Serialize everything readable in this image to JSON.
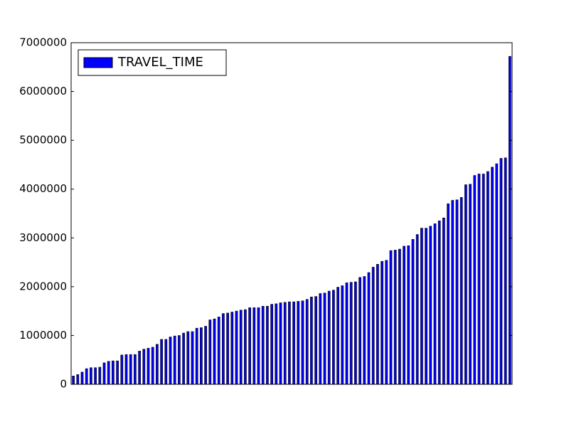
{
  "chart_data": {
    "type": "bar",
    "categories": [
      null,
      null,
      null,
      null,
      null,
      null,
      null,
      null,
      null,
      null,
      null,
      null,
      null,
      null,
      null,
      null,
      null,
      null,
      null,
      null,
      null,
      null,
      null,
      null,
      null,
      null,
      null,
      null,
      null,
      null,
      null,
      null,
      null,
      null,
      null,
      null,
      null,
      null,
      null,
      null,
      null,
      null,
      null,
      null,
      null,
      null,
      null,
      null,
      null,
      null,
      null,
      null,
      null,
      null,
      null,
      null,
      null,
      null,
      null,
      null,
      null,
      null,
      null,
      null,
      null,
      null,
      null,
      null,
      null,
      null,
      null,
      null,
      null,
      null,
      null,
      null,
      null,
      null,
      null,
      null,
      null,
      null,
      null,
      null,
      null,
      null,
      null,
      null,
      null,
      null,
      null,
      null,
      null,
      null,
      null,
      null,
      null,
      null,
      null,
      null
    ],
    "series": [
      {
        "name": "TRAVEL_TIME",
        "color": "#0000ff",
        "values": [
          170000,
          200000,
          250000,
          320000,
          340000,
          340000,
          350000,
          440000,
          470000,
          480000,
          480000,
          600000,
          610000,
          610000,
          610000,
          680000,
          720000,
          740000,
          760000,
          820000,
          920000,
          920000,
          970000,
          990000,
          1000000,
          1050000,
          1080000,
          1080000,
          1150000,
          1160000,
          1190000,
          1320000,
          1340000,
          1380000,
          1450000,
          1460000,
          1480000,
          1500000,
          1520000,
          1530000,
          1570000,
          1570000,
          1570000,
          1600000,
          1600000,
          1640000,
          1650000,
          1670000,
          1680000,
          1690000,
          1690000,
          1700000,
          1710000,
          1740000,
          1790000,
          1800000,
          1860000,
          1870000,
          1910000,
          1930000,
          1990000,
          2020000,
          2080000,
          2090000,
          2100000,
          2190000,
          2210000,
          2290000,
          2400000,
          2460000,
          2520000,
          2540000,
          2740000,
          2750000,
          2770000,
          2830000,
          2840000,
          2970000,
          3070000,
          3200000,
          3200000,
          3240000,
          3290000,
          3350000,
          3410000,
          3700000,
          3770000,
          3780000,
          3830000,
          4090000,
          4100000,
          4280000,
          4310000,
          4310000,
          4360000,
          4450000,
          4520000,
          4630000,
          4640000,
          6720000
        ]
      }
    ],
    "ylim": [
      0,
      7000000
    ],
    "yticks": [
      0,
      1000000,
      2000000,
      3000000,
      4000000,
      5000000,
      6000000,
      7000000
    ],
    "legend": "upper left",
    "grid": false
  }
}
